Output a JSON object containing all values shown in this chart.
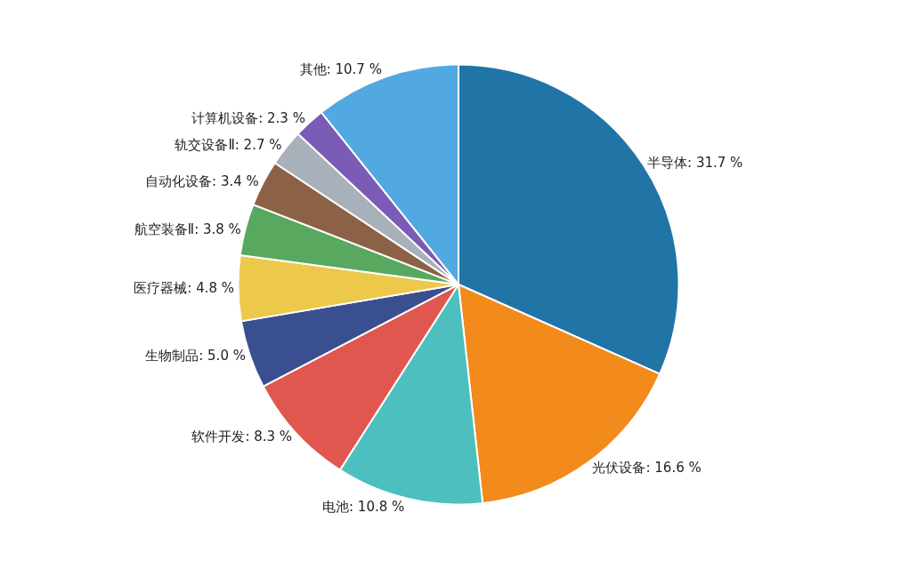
{
  "chart_data": {
    "type": "pie",
    "categories": [
      "半导体",
      "光伏设备",
      "电池",
      "软件开发",
      "生物制品",
      "医疗器械",
      "航空装备Ⅱ",
      "自动化设备",
      "轨交设备Ⅱ",
      "计算机设备",
      "其他"
    ],
    "values": [
      31.7,
      16.6,
      10.8,
      8.3,
      5.0,
      4.8,
      3.8,
      3.4,
      2.7,
      2.3,
      10.7
    ],
    "value_labels": [
      "31.7 %",
      "16.6 %",
      "10.8 %",
      "8.3 %",
      "5.0 %",
      "4.8 %",
      "3.8 %",
      "3.4 %",
      "2.7 %",
      "2.3 %",
      "10.7 %"
    ],
    "colors": [
      "#2174a6",
      "#f28a1c",
      "#4dbfbf",
      "#e0574f",
      "#3a4f8f",
      "#ecc94b",
      "#58a85f",
      "#8b6245",
      "#a8b0ba",
      "#7a5bb5",
      "#52a8e0"
    ]
  }
}
